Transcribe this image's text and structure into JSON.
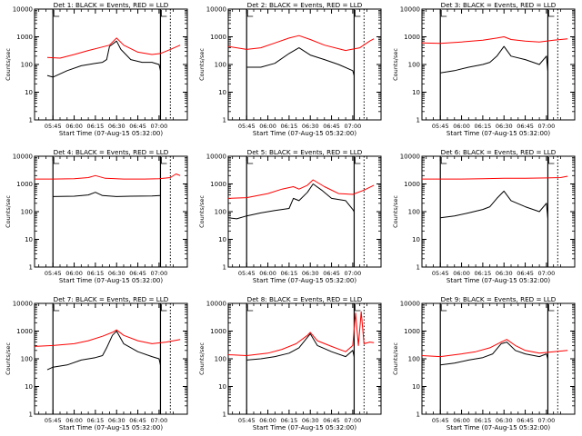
{
  "page": {
    "ylabel": "Counts/sec",
    "xlabel": "Start Time (07-Aug-15 05:32:00)",
    "colors": {
      "events": "#000000",
      "lld": "#ff0000",
      "axes": "#000000",
      "background": "#ffffff"
    }
  },
  "chart_data": [
    {
      "type": "line",
      "title": "Det 1: BLACK = Events, RED = LLD",
      "xlabel": "Start Time (07-Aug-15 05:32:00)",
      "ylabel": "Counts/sec",
      "yscale": "log",
      "ylim": [
        1,
        10000
      ],
      "xlim": [
        "05:32",
        "07:20"
      ],
      "xticks": [
        "05:45",
        "06:00",
        "06:15",
        "06:30",
        "06:45",
        "07:00"
      ],
      "yticks": [
        "1",
        "10",
        "100",
        "1000",
        "10000"
      ],
      "markers": [
        "05:45",
        "07:01",
        "07:08"
      ],
      "series": [
        {
          "name": "Events",
          "color": "#000000",
          "x": [
            "05:41",
            "05:45",
            "05:55",
            "06:05",
            "06:15",
            "06:20",
            "06:23",
            "06:25",
            "06:30",
            "06:33",
            "06:40",
            "06:48",
            "06:55",
            "07:00",
            "07:01"
          ],
          "values": [
            40,
            35,
            60,
            90,
            110,
            120,
            150,
            450,
            700,
            350,
            150,
            120,
            120,
            100,
            60
          ]
        },
        {
          "name": "LLD",
          "color": "#ff0000",
          "x": [
            "05:41",
            "05:50",
            "06:00",
            "06:10",
            "06:20",
            "06:25",
            "06:30",
            "06:35",
            "06:45",
            "06:55",
            "07:01",
            "07:08",
            "07:15"
          ],
          "values": [
            180,
            170,
            230,
            320,
            430,
            500,
            900,
            500,
            280,
            230,
            250,
            350,
            500
          ]
        }
      ]
    },
    {
      "type": "line",
      "title": "Det 2: BLACK = Events, RED = LLD",
      "xlabel": "Start Time (07-Aug-15 05:32:00)",
      "ylabel": "Counts/sec",
      "yscale": "log",
      "ylim": [
        1,
        10000
      ],
      "xlim": [
        "05:32",
        "07:20"
      ],
      "xticks": [
        "05:45",
        "06:00",
        "06:15",
        "06:30",
        "06:45",
        "07:00"
      ],
      "yticks": [
        "1",
        "10",
        "100",
        "1000",
        "10000"
      ],
      "markers": [
        "05:45",
        "07:01",
        "07:08"
      ],
      "series": [
        {
          "name": "Events",
          "color": "#000000",
          "x": [
            "05:45",
            "05:55",
            "06:05",
            "06:15",
            "06:22",
            "06:30",
            "06:40",
            "06:50",
            "07:00",
            "07:01"
          ],
          "values": [
            80,
            80,
            110,
            250,
            400,
            220,
            150,
            100,
            60,
            40
          ]
        },
        {
          "name": "LLD",
          "color": "#ff0000",
          "x": [
            "05:32",
            "05:45",
            "05:55",
            "06:05",
            "06:15",
            "06:22",
            "06:30",
            "06:40",
            "06:55",
            "07:05",
            "07:12",
            "07:15"
          ],
          "values": [
            450,
            350,
            400,
            600,
            900,
            1100,
            800,
            500,
            320,
            400,
            700,
            850
          ]
        }
      ]
    },
    {
      "type": "line",
      "title": "Det 3: BLACK = Events, RED = LLD",
      "xlabel": "Start Time (07-Aug-15 05:32:00)",
      "ylabel": "Counts/sec",
      "yscale": "log",
      "ylim": [
        1,
        10000
      ],
      "xlim": [
        "05:32",
        "07:20"
      ],
      "xticks": [
        "05:45",
        "06:00",
        "06:15",
        "06:30",
        "06:45",
        "07:00"
      ],
      "yticks": [
        "1",
        "10",
        "100",
        "1000",
        "10000"
      ],
      "markers": [
        "05:45",
        "07:01",
        "07:08"
      ],
      "series": [
        {
          "name": "Events",
          "color": "#000000",
          "x": [
            "05:45",
            "05:55",
            "06:05",
            "06:15",
            "06:20",
            "06:25",
            "06:30",
            "06:35",
            "06:45",
            "06:55",
            "07:00",
            "07:01"
          ],
          "values": [
            50,
            60,
            80,
            100,
            120,
            200,
            450,
            200,
            150,
            100,
            200,
            60
          ]
        },
        {
          "name": "LLD",
          "color": "#ff0000",
          "x": [
            "05:32",
            "05:45",
            "06:00",
            "06:15",
            "06:25",
            "06:30",
            "06:35",
            "06:45",
            "06:55",
            "07:05",
            "07:15"
          ],
          "values": [
            600,
            580,
            650,
            750,
            900,
            1000,
            800,
            700,
            650,
            750,
            850
          ]
        }
      ]
    },
    {
      "type": "line",
      "title": "Det 4: BLACK = Events, RED = LLD",
      "xlabel": "Start Time (07-Aug-15 05:32:00)",
      "ylabel": "Counts/sec",
      "yscale": "log",
      "ylim": [
        1,
        10000
      ],
      "xlim": [
        "05:32",
        "07:20"
      ],
      "xticks": [
        "05:45",
        "06:00",
        "06:15",
        "06:30",
        "06:45",
        "07:00"
      ],
      "yticks": [
        "1",
        "10",
        "100",
        "1000",
        "10000"
      ],
      "markers": [
        "05:45",
        "07:01",
        "07:08"
      ],
      "series": [
        {
          "name": "Events",
          "color": "#000000",
          "x": [
            "05:45",
            "06:00",
            "06:10",
            "06:15",
            "06:20",
            "06:30",
            "06:40",
            "06:55",
            "07:01"
          ],
          "values": [
            350,
            360,
            400,
            500,
            380,
            350,
            360,
            370,
            380
          ]
        },
        {
          "name": "LLD",
          "color": "#ff0000",
          "x": [
            "05:32",
            "05:45",
            "06:00",
            "06:10",
            "06:15",
            "06:22",
            "06:35",
            "06:50",
            "07:00",
            "07:08",
            "07:12",
            "07:15"
          ],
          "values": [
            1500,
            1500,
            1550,
            1700,
            2000,
            1600,
            1500,
            1500,
            1550,
            1700,
            2300,
            2000
          ]
        }
      ]
    },
    {
      "type": "line",
      "title": "Det 5: BLACK = Events, RED = LLD",
      "xlabel": "Start Time (07-Aug-15 05:32:00)",
      "ylabel": "Counts/sec",
      "yscale": "log",
      "ylim": [
        1,
        10000
      ],
      "xlim": [
        "05:32",
        "07:20"
      ],
      "xticks": [
        "05:45",
        "06:00",
        "06:15",
        "06:30",
        "06:45",
        "07:00"
      ],
      "yticks": [
        "1",
        "10",
        "100",
        "1000",
        "10000"
      ],
      "markers": [
        "05:45",
        "07:01",
        "07:08"
      ],
      "series": [
        {
          "name": "Events",
          "color": "#000000",
          "x": [
            "05:32",
            "05:38",
            "05:45",
            "05:55",
            "06:05",
            "06:15",
            "06:18",
            "06:22",
            "06:28",
            "06:32",
            "06:38",
            "06:45",
            "06:55",
            "07:00",
            "07:01"
          ],
          "values": [
            60,
            55,
            70,
            90,
            110,
            130,
            300,
            250,
            500,
            1000,
            600,
            300,
            250,
            120,
            100
          ]
        },
        {
          "name": "LLD",
          "color": "#ff0000",
          "x": [
            "05:32",
            "05:45",
            "06:00",
            "06:10",
            "06:18",
            "06:22",
            "06:28",
            "06:32",
            "06:40",
            "06:50",
            "07:00",
            "07:08",
            "07:15"
          ],
          "values": [
            300,
            320,
            450,
            650,
            800,
            650,
            900,
            1400,
            800,
            450,
            420,
            600,
            900
          ]
        }
      ]
    },
    {
      "type": "line",
      "title": "Det 6: BLACK = Events, RED = LLD",
      "xlabel": "Start Time (07-Aug-15 05:32:00)",
      "ylabel": "Counts/sec",
      "yscale": "log",
      "ylim": [
        1,
        10000
      ],
      "xlim": [
        "05:32",
        "07:20"
      ],
      "xticks": [
        "05:45",
        "06:00",
        "06:15",
        "06:30",
        "06:45",
        "07:00"
      ],
      "yticks": [
        "1",
        "10",
        "100",
        "1000",
        "10000"
      ],
      "markers": [
        "05:45",
        "07:01",
        "07:08"
      ],
      "series": [
        {
          "name": "Events",
          "color": "#000000",
          "x": [
            "05:45",
            "05:55",
            "06:05",
            "06:15",
            "06:20",
            "06:25",
            "06:30",
            "06:35",
            "06:45",
            "06:55",
            "07:00",
            "07:01"
          ],
          "values": [
            60,
            70,
            90,
            120,
            150,
            300,
            550,
            250,
            150,
            100,
            200,
            60
          ]
        },
        {
          "name": "LLD",
          "color": "#ff0000",
          "x": [
            "05:32",
            "05:45",
            "06:00",
            "06:15",
            "06:30",
            "06:45",
            "07:00",
            "07:10",
            "07:15"
          ],
          "values": [
            1500,
            1500,
            1500,
            1550,
            1600,
            1600,
            1650,
            1700,
            1900
          ]
        }
      ]
    },
    {
      "type": "line",
      "title": "Det 7: BLACK = Events, RED = LLD",
      "xlabel": "Start Time (07-Aug-15 05:32:00)",
      "ylabel": "Counts/sec",
      "yscale": "log",
      "ylim": [
        1,
        10000
      ],
      "xlim": [
        "05:32",
        "07:20"
      ],
      "xticks": [
        "05:45",
        "06:00",
        "06:15",
        "06:30",
        "06:45",
        "07:00"
      ],
      "yticks": [
        "1",
        "10",
        "100",
        "1000",
        "10000"
      ],
      "markers": [
        "05:45",
        "07:01",
        "07:08"
      ],
      "series": [
        {
          "name": "Events",
          "color": "#000000",
          "x": [
            "05:41",
            "05:45",
            "05:55",
            "06:05",
            "06:15",
            "06:20",
            "06:23",
            "06:27",
            "06:30",
            "06:35",
            "06:45",
            "06:55",
            "07:00",
            "07:01"
          ],
          "values": [
            40,
            50,
            60,
            90,
            110,
            130,
            250,
            700,
            1000,
            350,
            180,
            120,
            100,
            60
          ]
        },
        {
          "name": "LLD",
          "color": "#ff0000",
          "x": [
            "05:32",
            "05:45",
            "06:00",
            "06:10",
            "06:20",
            "06:27",
            "06:30",
            "06:35",
            "06:45",
            "06:55",
            "07:05",
            "07:15"
          ],
          "values": [
            280,
            300,
            350,
            450,
            650,
            900,
            1100,
            700,
            450,
            350,
            400,
            500
          ]
        }
      ]
    },
    {
      "type": "line",
      "title": "Det 8: BLACK = Events, RED = LLD",
      "xlabel": "Start Time (07-Aug-15 05:32:00)",
      "ylabel": "Counts/sec",
      "yscale": "log",
      "ylim": [
        1,
        10000
      ],
      "xlim": [
        "05:32",
        "07:20"
      ],
      "xticks": [
        "05:45",
        "06:00",
        "06:15",
        "06:30",
        "06:45",
        "07:00"
      ],
      "yticks": [
        "1",
        "10",
        "100",
        "1000",
        "10000"
      ],
      "markers": [
        "05:45",
        "07:01",
        "07:08"
      ],
      "series": [
        {
          "name": "Events",
          "color": "#000000",
          "x": [
            "05:45",
            "05:55",
            "06:05",
            "06:15",
            "06:22",
            "06:28",
            "06:30",
            "06:35",
            "06:45",
            "06:55",
            "07:00",
            "07:01"
          ],
          "values": [
            90,
            100,
            120,
            160,
            250,
            600,
            800,
            300,
            180,
            120,
            200,
            120
          ]
        },
        {
          "name": "LLD",
          "color": "#ff0000",
          "x": [
            "05:32",
            "05:45",
            "06:00",
            "06:10",
            "06:20",
            "06:28",
            "06:30",
            "06:35",
            "06:45",
            "06:55",
            "07:00",
            "07:02",
            "07:04",
            "07:06",
            "07:08",
            "07:12",
            "07:15"
          ],
          "values": [
            140,
            130,
            160,
            220,
            350,
            700,
            900,
            450,
            280,
            180,
            300,
            4500,
            300,
            5000,
            350,
            400,
            380
          ]
        }
      ]
    },
    {
      "type": "line",
      "title": "Det 9: BLACK = Events, RED = LLD",
      "xlabel": "Start Time (07-Aug-15 05:32:00)",
      "ylabel": "Counts/sec",
      "yscale": "log",
      "ylim": [
        1,
        10000
      ],
      "xlim": [
        "05:32",
        "07:20"
      ],
      "xticks": [
        "05:45",
        "06:00",
        "06:15",
        "06:30",
        "06:45",
        "07:00"
      ],
      "yticks": [
        "1",
        "10",
        "100",
        "1000",
        "10000"
      ],
      "markers": [
        "05:45",
        "07:01",
        "07:08"
      ],
      "series": [
        {
          "name": "Events",
          "color": "#000000",
          "x": [
            "05:45",
            "05:55",
            "06:05",
            "06:15",
            "06:22",
            "06:28",
            "06:32",
            "06:38",
            "06:45",
            "06:55",
            "07:00",
            "07:01"
          ],
          "values": [
            60,
            70,
            90,
            110,
            150,
            350,
            400,
            200,
            150,
            120,
            150,
            100
          ]
        },
        {
          "name": "LLD",
          "color": "#ff0000",
          "x": [
            "05:32",
            "05:45",
            "06:00",
            "06:10",
            "06:20",
            "06:28",
            "06:32",
            "06:38",
            "06:45",
            "06:55",
            "07:05",
            "07:15"
          ],
          "values": [
            130,
            120,
            150,
            180,
            250,
            400,
            500,
            300,
            200,
            160,
            180,
            200
          ]
        }
      ]
    }
  ]
}
